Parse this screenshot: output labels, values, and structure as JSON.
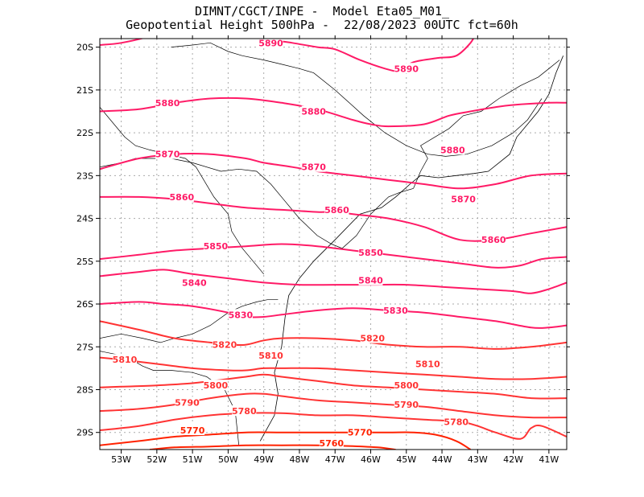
{
  "chart_data": {
    "type": "line",
    "title": "DIMNT/CGCT/INPE -  Model Eta05_M01_",
    "subtitle": "Geopotential Height 500hPa -  22/08/2023 00UTC fct=60h",
    "xlabel": "",
    "ylabel": "",
    "xlim": [
      -53.6,
      -40.5
    ],
    "ylim": [
      -29.4,
      -19.8
    ],
    "x_ticks": [
      "53W",
      "52W",
      "51W",
      "50W",
      "49W",
      "48W",
      "47W",
      "46W",
      "45W",
      "44W",
      "43W",
      "42W",
      "41W"
    ],
    "y_ticks": [
      "20S",
      "21S",
      "22S",
      "23S",
      "24S",
      "25S",
      "26S",
      "27S",
      "28S",
      "29S"
    ],
    "grid": true,
    "series": [
      {
        "name": "5890a",
        "level": 5890,
        "color": "#ff1a66",
        "x": [
          -53.6,
          -53.0,
          -52.2,
          -51.6,
          -51.0,
          -50.0,
          -49.0,
          -48.2,
          -47.5,
          -47.0,
          -46.3,
          -45.6,
          -45.2,
          -44.8,
          -44.1,
          -43.6,
          -43.2,
          -43.0
        ],
        "y": [
          -19.95,
          -19.9,
          -19.75,
          -19.6,
          -19.5,
          -19.6,
          -19.8,
          -19.9,
          -20.0,
          -20.05,
          -20.3,
          -20.5,
          -20.55,
          -20.35,
          -20.25,
          -20.2,
          -19.9,
          -19.6
        ]
      },
      {
        "name": "5880",
        "level": 5880,
        "color": "#ff1a66",
        "x": [
          -53.6,
          -52.5,
          -51.5,
          -50.5,
          -49.5,
          -48.5,
          -47.5,
          -46.5,
          -46.0,
          -45.5,
          -44.5,
          -43.8,
          -43.2,
          -42.5,
          -42.0,
          -41.0,
          -40.5
        ],
        "y": [
          -21.5,
          -21.45,
          -21.3,
          -21.2,
          -21.2,
          -21.3,
          -21.45,
          -21.7,
          -21.8,
          -21.85,
          -21.8,
          -21.6,
          -21.5,
          -21.4,
          -21.35,
          -21.3,
          -21.3
        ]
      },
      {
        "name": "5870",
        "level": 5870,
        "color": "#ff1a66",
        "x": [
          -53.6,
          -52.5,
          -51.5,
          -50.5,
          -49.5,
          -49.0,
          -48.2,
          -47.5,
          -47.0,
          -46.5,
          -45.5,
          -44.5,
          -43.5,
          -42.5,
          -41.5,
          -40.5
        ],
        "y": [
          -22.85,
          -22.6,
          -22.5,
          -22.5,
          -22.6,
          -22.7,
          -22.8,
          -22.9,
          -22.95,
          -23.0,
          -23.1,
          -23.2,
          -23.3,
          -23.2,
          -23.0,
          -22.95
        ]
      },
      {
        "name": "5860",
        "level": 5860,
        "color": "#ff1a66",
        "x": [
          -53.6,
          -52.5,
          -51.5,
          -50.5,
          -49.5,
          -48.5,
          -47.5,
          -47.0,
          -46.5,
          -45.5,
          -44.5,
          -43.5,
          -42.5,
          -41.5,
          -40.5
        ],
        "y": [
          -23.5,
          -23.5,
          -23.55,
          -23.65,
          -23.75,
          -23.8,
          -23.85,
          -23.85,
          -23.9,
          -24.0,
          -24.2,
          -24.5,
          -24.5,
          -24.35,
          -24.2
        ]
      },
      {
        "name": "5850",
        "level": 5850,
        "color": "#ff1a66",
        "x": [
          -53.6,
          -52.5,
          -51.5,
          -50.5,
          -49.5,
          -48.5,
          -47.5,
          -46.5,
          -45.5,
          -44.5,
          -43.5,
          -42.5,
          -41.8,
          -41.2,
          -40.5
        ],
        "y": [
          -24.95,
          -24.85,
          -24.75,
          -24.7,
          -24.65,
          -24.6,
          -24.65,
          -24.75,
          -24.85,
          -24.95,
          -25.05,
          -25.15,
          -25.1,
          -24.95,
          -24.9
        ]
      },
      {
        "name": "5840",
        "level": 5840,
        "color": "#ff1a66",
        "x": [
          -53.6,
          -52.5,
          -51.8,
          -51.0,
          -50.0,
          -49.0,
          -48.0,
          -47.0,
          -46.0,
          -45.0,
          -44.0,
          -43.0,
          -42.0,
          -41.5,
          -41.0,
          -40.5
        ],
        "y": [
          -25.35,
          -25.25,
          -25.2,
          -25.3,
          -25.4,
          -25.5,
          -25.55,
          -25.55,
          -25.55,
          -25.55,
          -25.6,
          -25.65,
          -25.7,
          -25.75,
          -25.65,
          -25.5
        ]
      },
      {
        "name": "5830",
        "level": 5830,
        "color": "#ff1a66",
        "x": [
          -53.6,
          -52.5,
          -51.8,
          -51.0,
          -50.0,
          -49.5,
          -49.0,
          -48.5,
          -47.5,
          -46.5,
          -45.5,
          -44.5,
          -43.5,
          -42.5,
          -41.5,
          -41.0,
          -40.5
        ],
        "y": [
          -26.0,
          -25.95,
          -26.0,
          -26.05,
          -26.2,
          -26.3,
          -26.3,
          -26.25,
          -26.15,
          -26.1,
          -26.15,
          -26.2,
          -26.3,
          -26.4,
          -26.55,
          -26.55,
          -26.5
        ]
      },
      {
        "name": "5820",
        "level": 5820,
        "color": "#ff3333",
        "x": [
          -53.6,
          -52.5,
          -51.5,
          -50.5,
          -50.0,
          -49.5,
          -49.0,
          -48.5,
          -47.5,
          -46.5,
          -45.5,
          -44.5,
          -43.5,
          -42.5,
          -41.5,
          -40.5
        ],
        "y": [
          -26.4,
          -26.6,
          -26.8,
          -26.9,
          -26.95,
          -26.95,
          -26.85,
          -26.8,
          -26.8,
          -26.85,
          -26.95,
          -27.0,
          -27.0,
          -27.05,
          -27.0,
          -26.9
        ]
      },
      {
        "name": "5810",
        "level": 5810,
        "color": "#ff3333",
        "x": [
          -53.6,
          -53.0,
          -52.0,
          -51.0,
          -50.0,
          -49.5,
          -49.0,
          -48.5,
          -47.5,
          -46.5,
          -45.5,
          -44.5,
          -43.5,
          -42.5,
          -41.5,
          -40.5
        ],
        "y": [
          -27.25,
          -27.3,
          -27.4,
          -27.5,
          -27.55,
          -27.55,
          -27.5,
          -27.5,
          -27.5,
          -27.55,
          -27.6,
          -27.65,
          -27.7,
          -27.75,
          -27.75,
          -27.7
        ]
      },
      {
        "name": "5800",
        "level": 5800,
        "color": "#ff3333",
        "x": [
          -53.6,
          -53.0,
          -52.0,
          -51.0,
          -50.0,
          -49.5,
          -49.0,
          -48.5,
          -47.5,
          -46.5,
          -45.5,
          -44.5,
          -43.5,
          -42.5,
          -41.5,
          -40.5
        ],
        "y": [
          -27.95,
          -27.93,
          -27.9,
          -27.85,
          -27.75,
          -27.7,
          -27.65,
          -27.7,
          -27.8,
          -27.9,
          -27.95,
          -28.0,
          -28.05,
          -28.1,
          -28.2,
          -28.2
        ]
      },
      {
        "name": "5790",
        "level": 5790,
        "color": "#ff3333",
        "x": [
          -53.6,
          -52.5,
          -51.5,
          -50.5,
          -49.5,
          -49.0,
          -48.5,
          -47.5,
          -46.5,
          -45.5,
          -44.5,
          -43.5,
          -42.5,
          -41.5,
          -40.5
        ],
        "y": [
          -28.5,
          -28.45,
          -28.35,
          -28.2,
          -28.1,
          -28.1,
          -28.15,
          -28.25,
          -28.3,
          -28.35,
          -28.4,
          -28.5,
          -28.6,
          -28.65,
          -28.65
        ]
      },
      {
        "name": "5780",
        "level": 5780,
        "color": "#ff3333",
        "x": [
          -53.6,
          -52.5,
          -51.5,
          -50.5,
          -49.5,
          -48.5,
          -47.5,
          -46.5,
          -45.5,
          -44.5,
          -43.5,
          -43.0,
          -42.5,
          -41.8,
          -41.5,
          -41.2,
          -40.5
        ],
        "y": [
          -28.95,
          -28.85,
          -28.7,
          -28.6,
          -28.55,
          -28.55,
          -28.6,
          -28.6,
          -28.65,
          -28.7,
          -28.75,
          -28.85,
          -29.0,
          -29.15,
          -28.9,
          -28.85,
          -29.1
        ]
      },
      {
        "name": "5770",
        "level": 5770,
        "color": "#ff2200",
        "x": [
          -53.6,
          -52.5,
          -51.5,
          -50.5,
          -49.5,
          -48.5,
          -47.5,
          -46.5,
          -45.5,
          -44.8,
          -44.2,
          -43.6,
          -43.2
        ],
        "y": [
          -29.3,
          -29.2,
          -29.1,
          -29.05,
          -29.0,
          -29.0,
          -29.0,
          -29.0,
          -29.0,
          -29.0,
          -29.05,
          -29.2,
          -29.4
        ]
      },
      {
        "name": "5760",
        "level": 5760,
        "color": "#ff2200",
        "x": [
          -52.2,
          -51.5,
          -50.5,
          -49.5,
          -48.5,
          -47.5,
          -46.5,
          -45.8,
          -45.3
        ],
        "y": [
          -29.4,
          -29.35,
          -29.33,
          -29.3,
          -29.3,
          -29.3,
          -29.32,
          -29.35,
          -29.4
        ]
      }
    ],
    "labels": [
      {
        "text": "5890",
        "x": -48.8,
        "y": -19.9,
        "color": "#ff1a66"
      },
      {
        "text": "5890",
        "x": -45.0,
        "y": -20.5,
        "color": "#ff1a66"
      },
      {
        "text": "5880",
        "x": -51.7,
        "y": -21.3,
        "color": "#ff1a66"
      },
      {
        "text": "5880",
        "x": -47.6,
        "y": -21.5,
        "color": "#ff1a66"
      },
      {
        "text": "5880",
        "x": -43.7,
        "y": -22.4,
        "color": "#ff1a66"
      },
      {
        "text": "5870",
        "x": -51.7,
        "y": -22.5,
        "color": "#ff1a66"
      },
      {
        "text": "5870",
        "x": -47.6,
        "y": -22.8,
        "color": "#ff1a66"
      },
      {
        "text": "5870",
        "x": -43.4,
        "y": -23.55,
        "color": "#ff1a66"
      },
      {
        "text": "5860",
        "x": -51.3,
        "y": -23.5,
        "color": "#ff1a66"
      },
      {
        "text": "5860",
        "x": -46.95,
        "y": -23.8,
        "color": "#ff1a66"
      },
      {
        "text": "5860",
        "x": -42.55,
        "y": -24.5,
        "color": "#ff1a66"
      },
      {
        "text": "5850",
        "x": -50.35,
        "y": -24.65,
        "color": "#ff1a66"
      },
      {
        "text": "5850",
        "x": -46.0,
        "y": -24.8,
        "color": "#ff1a66"
      },
      {
        "text": "5840",
        "x": -50.95,
        "y": -25.5,
        "color": "#ff1a66"
      },
      {
        "text": "5840",
        "x": -46.0,
        "y": -25.45,
        "color": "#ff1a66"
      },
      {
        "text": "5830",
        "x": -49.65,
        "y": -26.25,
        "color": "#ff1a66"
      },
      {
        "text": "5830",
        "x": -45.3,
        "y": -26.15,
        "color": "#ff1a66"
      },
      {
        "text": "5820",
        "x": -50.1,
        "y": -26.95,
        "color": "#ff3333"
      },
      {
        "text": "5820",
        "x": -45.95,
        "y": -26.8,
        "color": "#ff3333"
      },
      {
        "text": "5810",
        "x": -52.9,
        "y": -27.3,
        "color": "#ff3333"
      },
      {
        "text": "5810",
        "x": -48.8,
        "y": -27.2,
        "color": "#ff3333"
      },
      {
        "text": "5810",
        "x": -44.4,
        "y": -27.4,
        "color": "#ff3333"
      },
      {
        "text": "5800",
        "x": -50.35,
        "y": -27.9,
        "color": "#ff3333"
      },
      {
        "text": "5800",
        "x": -45.0,
        "y": -27.9,
        "color": "#ff3333"
      },
      {
        "text": "5790",
        "x": -51.15,
        "y": -28.3,
        "color": "#ff3333"
      },
      {
        "text": "5790",
        "x": -45.0,
        "y": -28.35,
        "color": "#ff3333"
      },
      {
        "text": "5780",
        "x": -49.55,
        "y": -28.5,
        "color": "#ff3333"
      },
      {
        "text": "5780",
        "x": -43.6,
        "y": -28.75,
        "color": "#ff3333"
      },
      {
        "text": "5770",
        "x": -51.0,
        "y": -28.95,
        "color": "#ff2200"
      },
      {
        "text": "5770",
        "x": -46.3,
        "y": -29.0,
        "color": "#ff2200"
      },
      {
        "text": "5760",
        "x": -47.1,
        "y": -29.25,
        "color": "#ff2200"
      }
    ],
    "coastline": {
      "lon": [
        -49.1,
        -48.7,
        -48.6,
        -48.7,
        -48.5,
        -48.4,
        -48.3,
        -48.0,
        -47.6,
        -47.0,
        -46.3,
        -45.7,
        -45.3,
        -44.9,
        -44.6,
        -44.1,
        -43.6,
        -43.1,
        -42.7,
        -42.1,
        -41.9,
        -41.6,
        -41.3,
        -41.0,
        -40.8,
        -40.6
      ],
      "lat": [
        -29.2,
        -28.6,
        -28.1,
        -27.6,
        -27.0,
        -26.3,
        -25.8,
        -25.4,
        -25.0,
        -24.5,
        -23.9,
        -23.75,
        -23.5,
        -23.2,
        -23.0,
        -23.05,
        -23.0,
        -22.95,
        -22.9,
        -22.5,
        -22.1,
        -21.8,
        -21.5,
        -21.1,
        -20.6,
        -20.2
      ]
    },
    "state_borders": [
      {
        "lon": [
          -53.6,
          -53.0,
          -52.4,
          -51.9,
          -51.5,
          -51.0,
          -50.5,
          -50.0,
          -49.6,
          -49.2,
          -48.9,
          -48.6
        ],
        "lat": [
          -26.8,
          -26.7,
          -26.8,
          -26.9,
          -26.8,
          -26.7,
          -26.5,
          -26.2,
          -26.05,
          -25.95,
          -25.9,
          -25.9
        ]
      },
      {
        "lon": [
          -53.6,
          -53.0,
          -52.6,
          -52.4,
          -52.1,
          -51.6,
          -51.0,
          -50.6,
          -50.1,
          -49.8,
          -49.7
        ],
        "lat": [
          -27.1,
          -27.2,
          -27.35,
          -27.45,
          -27.55,
          -27.55,
          -27.6,
          -27.7,
          -28.0,
          -28.5,
          -29.3
        ]
      },
      {
        "lon": [
          -53.6,
          -53.0,
          -52.6,
          -52.1,
          -51.6,
          -51.0,
          -50.2,
          -49.7,
          -49.2,
          -48.8,
          -48.4,
          -48.0,
          -47.5,
          -47.1,
          -46.8,
          -46.4,
          -46.0,
          -45.5,
          -45.2,
          -44.8
        ],
        "lat": [
          -22.8,
          -22.7,
          -22.6,
          -22.6,
          -22.6,
          -22.7,
          -22.9,
          -22.85,
          -22.9,
          -23.2,
          -23.6,
          -24.0,
          -24.4,
          -24.6,
          -24.7,
          -24.4,
          -23.9,
          -23.5,
          -23.4,
          -23.3
        ]
      },
      {
        "lon": [
          -51.6,
          -51.0,
          -50.5,
          -50.0,
          -49.6,
          -49.0,
          -48.5,
          -48.0,
          -47.6,
          -47.0,
          -46.6,
          -46.2,
          -45.6,
          -45.0,
          -44.4,
          -43.9,
          -43.3,
          -42.6,
          -42.0,
          -41.6,
          -41.2
        ],
        "lat": [
          -20.0,
          -19.95,
          -19.9,
          -20.1,
          -20.2,
          -20.3,
          -20.4,
          -20.5,
          -20.6,
          -21.0,
          -21.3,
          -21.6,
          -22.0,
          -22.3,
          -22.5,
          -22.55,
          -22.5,
          -22.3,
          -22.0,
          -21.7,
          -21.2
        ]
      },
      {
        "lon": [
          -50.9,
          -50.4,
          -50.0,
          -49.9,
          -49.6,
          -49.3,
          -49.0
        ],
        "lat": [
          -22.8,
          -23.5,
          -23.9,
          -24.3,
          -24.7,
          -25.0,
          -25.3
        ]
      },
      {
        "lon": [
          -44.8,
          -44.6,
          -44.4,
          -44.6,
          -44.2,
          -43.8,
          -43.4,
          -42.9,
          -42.4,
          -41.8,
          -41.3,
          -41.0,
          -40.7
        ],
        "lat": [
          -23.3,
          -22.9,
          -22.6,
          -22.3,
          -22.1,
          -21.9,
          -21.6,
          -21.5,
          -21.2,
          -20.9,
          -20.7,
          -20.5,
          -20.3
        ]
      },
      {
        "lon": [
          -53.6,
          -53.2,
          -52.9,
          -52.6,
          -52.2,
          -51.7,
          -51.2,
          -50.9
        ],
        "lat": [
          -21.4,
          -21.8,
          -22.1,
          -22.3,
          -22.4,
          -22.5,
          -22.6,
          -22.8
        ]
      }
    ]
  }
}
